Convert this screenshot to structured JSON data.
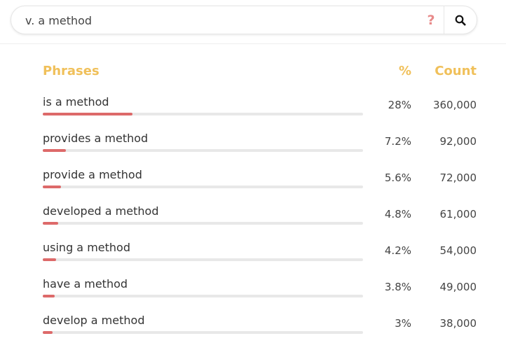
{
  "search": {
    "value": "v. a method",
    "help_icon": "question-icon",
    "search_icon": "search-icon"
  },
  "table": {
    "headers": {
      "phrases": "Phrases",
      "percent": "%",
      "count": "Count"
    },
    "rows": [
      {
        "phrase": "is a method",
        "percent": "28%",
        "count": "360,000",
        "fraction": 0.28
      },
      {
        "phrase": "provides a method",
        "percent": "7.2%",
        "count": "92,000",
        "fraction": 0.072
      },
      {
        "phrase": "provide a method",
        "percent": "5.6%",
        "count": "72,000",
        "fraction": 0.056
      },
      {
        "phrase": "developed a method",
        "percent": "4.8%",
        "count": "61,000",
        "fraction": 0.048
      },
      {
        "phrase": "using a method",
        "percent": "4.2%",
        "count": "54,000",
        "fraction": 0.042
      },
      {
        "phrase": "have a method",
        "percent": "3.8%",
        "count": "49,000",
        "fraction": 0.038
      },
      {
        "phrase": "develop a method",
        "percent": "3%",
        "count": "38,000",
        "fraction": 0.03
      }
    ]
  },
  "colors": {
    "header": "#f0c05a",
    "bar_fill": "#dd6a6a",
    "bar_track": "#e8e8e8",
    "help_icon": "#e88a8a"
  }
}
